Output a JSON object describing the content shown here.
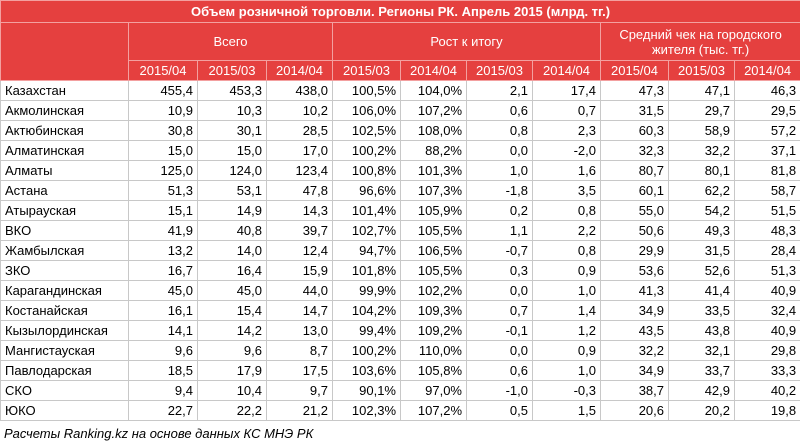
{
  "title": "Объем розничной торговли. Регионы РК. Апрель 2015 (млрд. тг.)",
  "groups": [
    "Всего",
    "Рост к итогу",
    "Средний чек на городского жителя (тыс. тг.)"
  ],
  "subheaders": [
    "2015/04",
    "2015/03",
    "2014/04",
    "2015/03",
    "2014/04",
    "2015/03",
    "2014/04",
    "2015/04",
    "2015/03",
    "2014/04"
  ],
  "rows": [
    [
      "Казахстан",
      "455,4",
      "453,3",
      "438,0",
      "100,5%",
      "104,0%",
      "2,1",
      "17,4",
      "47,3",
      "47,1",
      "46,3"
    ],
    [
      "Акмолинская",
      "10,9",
      "10,3",
      "10,2",
      "106,0%",
      "107,2%",
      "0,6",
      "0,7",
      "31,5",
      "29,7",
      "29,5"
    ],
    [
      "Актюбинская",
      "30,8",
      "30,1",
      "28,5",
      "102,5%",
      "108,0%",
      "0,8",
      "2,3",
      "60,3",
      "58,9",
      "57,2"
    ],
    [
      "Алматинская",
      "15,0",
      "15,0",
      "17,0",
      "100,2%",
      "88,2%",
      "0,0",
      "-2,0",
      "32,3",
      "32,2",
      "37,1"
    ],
    [
      "Алматы",
      "125,0",
      "124,0",
      "123,4",
      "100,8%",
      "101,3%",
      "1,0",
      "1,6",
      "80,7",
      "80,1",
      "81,8"
    ],
    [
      "Астана",
      "51,3",
      "53,1",
      "47,8",
      "96,6%",
      "107,3%",
      "-1,8",
      "3,5",
      "60,1",
      "62,2",
      "58,7"
    ],
    [
      "Атырауская",
      "15,1",
      "14,9",
      "14,3",
      "101,4%",
      "105,9%",
      "0,2",
      "0,8",
      "55,0",
      "54,2",
      "51,5"
    ],
    [
      "ВКО",
      "41,9",
      "40,8",
      "39,7",
      "102,7%",
      "105,5%",
      "1,1",
      "2,2",
      "50,6",
      "49,3",
      "48,3"
    ],
    [
      "Жамбылская",
      "13,2",
      "14,0",
      "12,4",
      "94,7%",
      "106,5%",
      "-0,7",
      "0,8",
      "29,9",
      "31,5",
      "28,4"
    ],
    [
      "ЗКО",
      "16,7",
      "16,4",
      "15,9",
      "101,8%",
      "105,5%",
      "0,3",
      "0,9",
      "53,6",
      "52,6",
      "51,3"
    ],
    [
      "Карагандинская",
      "45,0",
      "45,0",
      "44,0",
      "99,9%",
      "102,2%",
      "0,0",
      "1,0",
      "41,3",
      "41,4",
      "40,9"
    ],
    [
      "Костанайская",
      "16,1",
      "15,4",
      "14,7",
      "104,2%",
      "109,3%",
      "0,7",
      "1,4",
      "34,9",
      "33,5",
      "32,4"
    ],
    [
      "Кызылординская",
      "14,1",
      "14,2",
      "13,0",
      "99,4%",
      "109,2%",
      "-0,1",
      "1,2",
      "43,5",
      "43,8",
      "40,9"
    ],
    [
      "Мангистауская",
      "9,6",
      "9,6",
      "8,7",
      "100,2%",
      "110,0%",
      "0,0",
      "0,9",
      "32,2",
      "32,1",
      "29,8"
    ],
    [
      "Павлодарская",
      "18,5",
      "17,9",
      "17,5",
      "103,6%",
      "105,8%",
      "0,6",
      "1,0",
      "34,9",
      "33,7",
      "33,3"
    ],
    [
      "СКО",
      "9,4",
      "10,4",
      "9,7",
      "90,1%",
      "97,0%",
      "-1,0",
      "-0,3",
      "38,7",
      "42,9",
      "40,2"
    ],
    [
      "ЮКО",
      "22,7",
      "22,2",
      "21,2",
      "102,3%",
      "107,2%",
      "0,5",
      "1,5",
      "20,6",
      "20,2",
      "19,8"
    ]
  ],
  "footer": "Расчеты Ranking.kz на основе данных КС МНЭ РК"
}
